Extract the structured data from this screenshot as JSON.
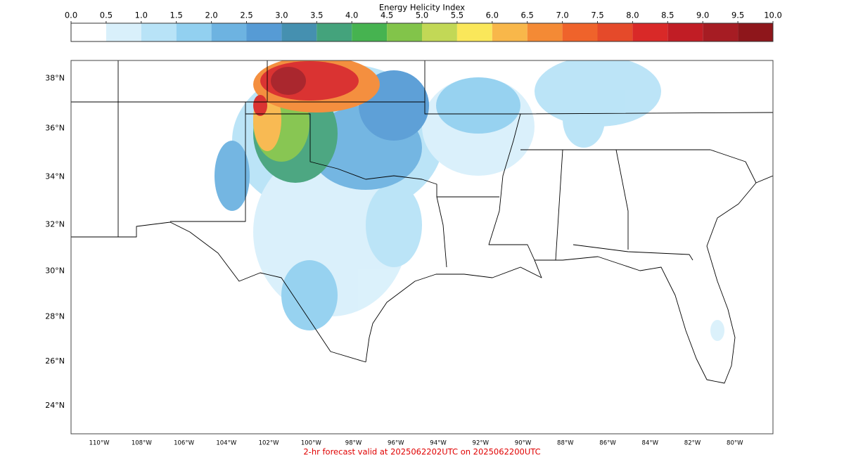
{
  "colorbar": {
    "title": "Energy Helicity Index",
    "ticks": [
      {
        "value": 0,
        "label": "0.0"
      },
      0.5,
      {
        "value": 1,
        "label": "1.0"
      },
      1.5,
      {
        "value": 2,
        "label": "2.0"
      },
      2.5,
      {
        "value": 3,
        "label": "3.0"
      },
      3.5,
      {
        "value": 4,
        "label": "4.0"
      },
      4.5,
      {
        "value": 5,
        "label": "5.0"
      },
      5.5,
      {
        "value": 6,
        "label": "6.0"
      },
      6.5,
      {
        "value": 7,
        "label": "7.0"
      },
      7.5,
      {
        "value": 8,
        "label": "8.0"
      },
      8.5,
      {
        "value": 9,
        "label": "9.0"
      },
      9.5,
      {
        "value": 10,
        "label": "10.0"
      }
    ],
    "colors": [
      "#ffffff",
      "#d9f0fb",
      "#b8e3f7",
      "#92d0f0",
      "#6db3e1",
      "#569bd5",
      "#4590b0",
      "#44a37c",
      "#46b350",
      "#82c44a",
      "#c2d856",
      "#fae75a",
      "#f8b74a",
      "#f48a35",
      "#ef632b",
      "#e54a2a",
      "#d92928",
      "#c11d25",
      "#a61c23",
      "#8e161b"
    ]
  },
  "map": {
    "xlim": [
      -111.33,
      -78.2
    ],
    "ylim": [
      22.7,
      38.7
    ],
    "lat_labels": [
      {
        "value": 38,
        "label": "38°N"
      },
      {
        "value": 36,
        "label": "36°N"
      },
      {
        "value": 34,
        "label": "34°N"
      },
      {
        "value": 32,
        "label": "32°N"
      },
      {
        "value": 30,
        "label": "30°N"
      },
      {
        "value": 28,
        "label": "28°N"
      },
      {
        "value": 26,
        "label": "26°N"
      },
      {
        "value": 24,
        "label": "24°N"
      }
    ],
    "lon_labels": [
      {
        "value": -110,
        "label": "110°W"
      },
      {
        "value": -108,
        "label": "108°W"
      },
      {
        "value": -106,
        "label": "106°W"
      },
      {
        "value": -104,
        "label": "104°W"
      },
      {
        "value": -102,
        "label": "102°W"
      },
      {
        "value": -100,
        "label": "100°W"
      },
      {
        "value": -98,
        "label": "98°W"
      },
      {
        "value": -96,
        "label": "96°W"
      },
      {
        "value": -94,
        "label": "94°W"
      },
      {
        "value": -92,
        "label": "92°W"
      },
      {
        "value": -90,
        "label": "90°W"
      },
      {
        "value": -88,
        "label": "88°W"
      },
      {
        "value": -86,
        "label": "86°W"
      },
      {
        "value": -84,
        "label": "84°W"
      },
      {
        "value": -82,
        "label": "82°W"
      },
      {
        "value": -80,
        "label": "80°W"
      }
    ]
  },
  "footer": "2-hr forecast valid at 2025062202UTC on 2025062200UTC"
}
